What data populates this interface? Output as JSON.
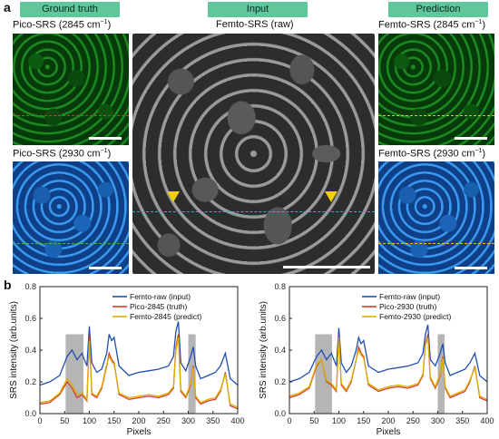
{
  "panel_a": {
    "letter": "a",
    "tags": {
      "left": "Ground truth",
      "center": "Input",
      "right": "Prediction"
    },
    "titles": {
      "left_top_pre": "Pico-SRS (2845 cm",
      "left_top_sup": "−1",
      "left_top_post": ")",
      "left_bottom_pre": "Pico-SRS (2930 cm",
      "left_bottom_sup": "−1",
      "left_bottom_post": ")",
      "center": "Femto-SRS (raw)",
      "right_top_pre": "Femto-SRS (2845 cm",
      "right_top_sup": "−1",
      "right_top_post": ")",
      "right_bottom_pre": "Femto-SRS (2930 cm",
      "right_bottom_sup": "−1",
      "right_bottom_post": ")"
    },
    "colors": {
      "tag_bg": "#5fc79b",
      "dashed_red": "#e03030",
      "dashed_yellow": "#e6c200",
      "dashed_cyan": "#20b8d0",
      "arrow": "#f0d000"
    }
  },
  "panel_b": {
    "letter": "b",
    "colors": {
      "femto_raw": "#1f4fb0",
      "pico_truth": "#d83b2b",
      "femto_predict": "#d8b000",
      "highlight": "#b5b5b5"
    }
  },
  "chart_data": [
    {
      "type": "line",
      "xlabel": "Pixels",
      "ylabel": "SRS intensity (arb.units)",
      "xlim": [
        0,
        400
      ],
      "ylim": [
        0.0,
        0.8
      ],
      "xticks": [
        "0",
        "50",
        "100",
        "150",
        "200",
        "250",
        "300",
        "350",
        "400"
      ],
      "yticks": [
        "0.0",
        "0.2",
        "0.4",
        "0.6",
        "0.8"
      ],
      "highlight_ranges": [
        [
          52,
          88
        ],
        [
          300,
          315
        ]
      ],
      "legend_position": "top-right",
      "x": [
        0,
        20,
        40,
        55,
        65,
        75,
        85,
        95,
        100,
        105,
        115,
        125,
        135,
        140,
        145,
        150,
        160,
        180,
        200,
        220,
        240,
        260,
        270,
        275,
        280,
        285,
        295,
        305,
        310,
        315,
        325,
        340,
        355,
        365,
        375,
        385,
        400
      ],
      "series": [
        {
          "name": "Femto-raw (input)",
          "values": [
            0.18,
            0.2,
            0.24,
            0.36,
            0.4,
            0.34,
            0.38,
            0.3,
            0.55,
            0.32,
            0.26,
            0.28,
            0.38,
            0.5,
            0.46,
            0.48,
            0.3,
            0.24,
            0.26,
            0.27,
            0.28,
            0.3,
            0.36,
            0.52,
            0.58,
            0.32,
            0.27,
            0.36,
            0.42,
            0.3,
            0.22,
            0.24,
            0.26,
            0.3,
            0.38,
            0.22,
            0.18
          ]
        },
        {
          "name": "Pico-2845 (truth)",
          "values": [
            0.06,
            0.07,
            0.12,
            0.2,
            0.16,
            0.1,
            0.12,
            0.08,
            0.48,
            0.12,
            0.1,
            0.16,
            0.3,
            0.38,
            0.34,
            0.32,
            0.12,
            0.09,
            0.1,
            0.11,
            0.1,
            0.12,
            0.16,
            0.42,
            0.5,
            0.14,
            0.1,
            0.18,
            0.3,
            0.1,
            0.06,
            0.08,
            0.09,
            0.14,
            0.26,
            0.05,
            0.03
          ]
        },
        {
          "name": "Femto-2845 (predict)",
          "values": [
            0.07,
            0.08,
            0.13,
            0.22,
            0.18,
            0.12,
            0.13,
            0.09,
            0.46,
            0.13,
            0.11,
            0.17,
            0.31,
            0.36,
            0.33,
            0.31,
            0.13,
            0.1,
            0.11,
            0.12,
            0.11,
            0.13,
            0.17,
            0.4,
            0.48,
            0.15,
            0.11,
            0.19,
            0.29,
            0.11,
            0.07,
            0.09,
            0.1,
            0.15,
            0.25,
            0.06,
            0.04
          ]
        }
      ]
    },
    {
      "type": "line",
      "xlabel": "Pixels",
      "ylabel": "SRS intensity (arb.units)",
      "xlim": [
        0,
        400
      ],
      "ylim": [
        0.0,
        0.8
      ],
      "xticks": [
        "0",
        "50",
        "100",
        "150",
        "200",
        "250",
        "300",
        "350",
        "400"
      ],
      "yticks": [
        "0.0",
        "0.2",
        "0.4",
        "0.6",
        "0.8"
      ],
      "highlight_ranges": [
        [
          52,
          86
        ],
        [
          300,
          314
        ]
      ],
      "legend_position": "top-right",
      "x": [
        0,
        20,
        40,
        55,
        65,
        75,
        85,
        95,
        100,
        105,
        115,
        125,
        135,
        140,
        145,
        150,
        160,
        180,
        200,
        220,
        240,
        260,
        270,
        275,
        280,
        285,
        295,
        305,
        310,
        315,
        325,
        340,
        355,
        365,
        375,
        385,
        400
      ],
      "series": [
        {
          "name": "Femto-raw (input)",
          "values": [
            0.2,
            0.22,
            0.26,
            0.36,
            0.4,
            0.34,
            0.38,
            0.3,
            0.54,
            0.32,
            0.26,
            0.3,
            0.4,
            0.48,
            0.44,
            0.46,
            0.3,
            0.26,
            0.28,
            0.29,
            0.3,
            0.32,
            0.38,
            0.5,
            0.56,
            0.34,
            0.3,
            0.38,
            0.44,
            0.32,
            0.24,
            0.26,
            0.28,
            0.32,
            0.38,
            0.24,
            0.2
          ]
        },
        {
          "name": "Pico-2930 (truth)",
          "values": [
            0.1,
            0.12,
            0.16,
            0.3,
            0.34,
            0.2,
            0.18,
            0.14,
            0.5,
            0.18,
            0.14,
            0.2,
            0.34,
            0.42,
            0.38,
            0.36,
            0.18,
            0.14,
            0.16,
            0.17,
            0.16,
            0.18,
            0.24,
            0.44,
            0.5,
            0.22,
            0.16,
            0.24,
            0.36,
            0.16,
            0.1,
            0.12,
            0.14,
            0.2,
            0.3,
            0.1,
            0.08
          ]
        },
        {
          "name": "Femto-2930 (predict)",
          "values": [
            0.11,
            0.13,
            0.17,
            0.31,
            0.34,
            0.21,
            0.19,
            0.15,
            0.48,
            0.19,
            0.15,
            0.21,
            0.34,
            0.4,
            0.37,
            0.35,
            0.19,
            0.15,
            0.17,
            0.18,
            0.17,
            0.19,
            0.25,
            0.43,
            0.48,
            0.23,
            0.17,
            0.25,
            0.35,
            0.17,
            0.11,
            0.13,
            0.15,
            0.21,
            0.29,
            0.11,
            0.09
          ]
        }
      ]
    }
  ]
}
